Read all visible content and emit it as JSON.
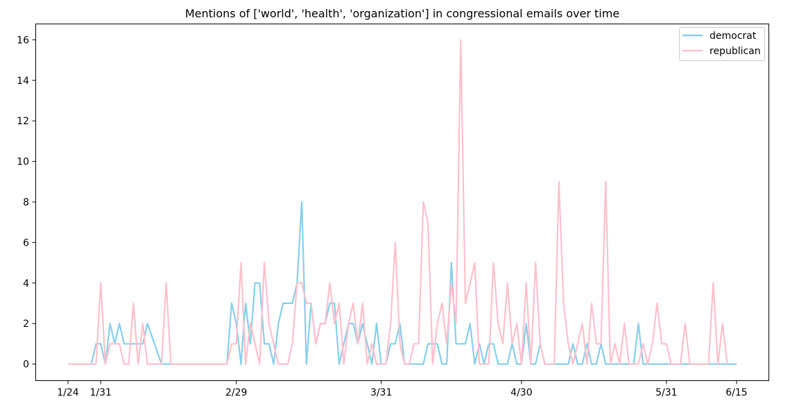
{
  "chart_data": {
    "type": "line",
    "title": "Mentions of ['world', 'health', 'organization'] in congressional emails over time",
    "xlabel": "",
    "ylabel": "",
    "x_start": "2024-01-24",
    "x_end": "2024-06-15",
    "xtick_labels": [
      {
        "date": "2024-01-24",
        "label": "1/24"
      },
      {
        "date": "2024-01-31",
        "label": "1/31"
      },
      {
        "date": "2024-02-29",
        "label": "2/29"
      },
      {
        "date": "2024-03-31",
        "label": "3/31"
      },
      {
        "date": "2024-04-30",
        "label": "4/30"
      },
      {
        "date": "2024-05-31",
        "label": "5/31"
      },
      {
        "date": "2024-06-15",
        "label": "6/15"
      }
    ],
    "ylim": [
      -0.8,
      16.8
    ],
    "yticks": [
      0,
      2,
      4,
      6,
      8,
      10,
      12,
      14,
      16
    ],
    "legend_position": "top-right",
    "grid": false,
    "series": [
      {
        "name": "democrat",
        "color": "#87ceeb",
        "points": [
          [
            "2024-01-24",
            0
          ],
          [
            "2024-01-29",
            0
          ],
          [
            "2024-01-30",
            1
          ],
          [
            "2024-01-31",
            1
          ],
          [
            "2024-02-01",
            0
          ],
          [
            "2024-02-02",
            2
          ],
          [
            "2024-02-03",
            1
          ],
          [
            "2024-02-04",
            2
          ],
          [
            "2024-02-05",
            1
          ],
          [
            "2024-02-09",
            1
          ],
          [
            "2024-02-10",
            2
          ],
          [
            "2024-02-13",
            0
          ],
          [
            "2024-02-27",
            0
          ],
          [
            "2024-02-28",
            3
          ],
          [
            "2024-02-29",
            2
          ],
          [
            "2024-03-01",
            0
          ],
          [
            "2024-03-02",
            3
          ],
          [
            "2024-03-03",
            1
          ],
          [
            "2024-03-04",
            4
          ],
          [
            "2024-03-05",
            4
          ],
          [
            "2024-03-06",
            1
          ],
          [
            "2024-03-07",
            1
          ],
          [
            "2024-03-08",
            0
          ],
          [
            "2024-03-09",
            2
          ],
          [
            "2024-03-10",
            3
          ],
          [
            "2024-03-12",
            3
          ],
          [
            "2024-03-13",
            4
          ],
          [
            "2024-03-14",
            8
          ],
          [
            "2024-03-15",
            0
          ],
          [
            "2024-03-16",
            3
          ],
          [
            "2024-03-17",
            1
          ],
          [
            "2024-03-18",
            2
          ],
          [
            "2024-03-19",
            2
          ],
          [
            "2024-03-20",
            3
          ],
          [
            "2024-03-21",
            3
          ],
          [
            "2024-03-22",
            0
          ],
          [
            "2024-03-23",
            1
          ],
          [
            "2024-03-24",
            2
          ],
          [
            "2024-03-25",
            2
          ],
          [
            "2024-03-26",
            1
          ],
          [
            "2024-03-27",
            2
          ],
          [
            "2024-03-28",
            1
          ],
          [
            "2024-03-29",
            0
          ],
          [
            "2024-03-30",
            2
          ],
          [
            "2024-03-31",
            0
          ],
          [
            "2024-04-01",
            0
          ],
          [
            "2024-04-02",
            1
          ],
          [
            "2024-04-03",
            1
          ],
          [
            "2024-04-04",
            2
          ],
          [
            "2024-04-05",
            0
          ],
          [
            "2024-04-09",
            0
          ],
          [
            "2024-04-10",
            1
          ],
          [
            "2024-04-11",
            1
          ],
          [
            "2024-04-12",
            1
          ],
          [
            "2024-04-13",
            0
          ],
          [
            "2024-04-14",
            0
          ],
          [
            "2024-04-15",
            5
          ],
          [
            "2024-04-16",
            1
          ],
          [
            "2024-04-18",
            1
          ],
          [
            "2024-04-19",
            2
          ],
          [
            "2024-04-20",
            0
          ],
          [
            "2024-04-21",
            1
          ],
          [
            "2024-04-22",
            0
          ],
          [
            "2024-04-23",
            1
          ],
          [
            "2024-04-24",
            1
          ],
          [
            "2024-04-25",
            0
          ],
          [
            "2024-04-27",
            0
          ],
          [
            "2024-04-28",
            1
          ],
          [
            "2024-04-29",
            0
          ],
          [
            "2024-04-30",
            0
          ],
          [
            "2024-05-01",
            2
          ],
          [
            "2024-05-02",
            0
          ],
          [
            "2024-05-03",
            0
          ],
          [
            "2024-05-04",
            1
          ],
          [
            "2024-05-05",
            0
          ],
          [
            "2024-05-10",
            0
          ],
          [
            "2024-05-11",
            1
          ],
          [
            "2024-05-12",
            0
          ],
          [
            "2024-05-13",
            0
          ],
          [
            "2024-05-14",
            1
          ],
          [
            "2024-05-15",
            0
          ],
          [
            "2024-05-16",
            0
          ],
          [
            "2024-05-17",
            1
          ],
          [
            "2024-05-18",
            0
          ],
          [
            "2024-05-24",
            0
          ],
          [
            "2024-05-25",
            2
          ],
          [
            "2024-05-26",
            0
          ],
          [
            "2024-06-15",
            0
          ]
        ]
      },
      {
        "name": "republican",
        "color": "#ffc0cb",
        "points": [
          [
            "2024-01-24",
            0
          ],
          [
            "2024-01-30",
            0
          ],
          [
            "2024-01-31",
            4
          ],
          [
            "2024-02-01",
            0
          ],
          [
            "2024-02-02",
            1
          ],
          [
            "2024-02-04",
            1
          ],
          [
            "2024-02-05",
            0
          ],
          [
            "2024-02-06",
            0
          ],
          [
            "2024-02-07",
            3
          ],
          [
            "2024-02-08",
            0
          ],
          [
            "2024-02-09",
            2
          ],
          [
            "2024-02-10",
            0
          ],
          [
            "2024-02-13",
            0
          ],
          [
            "2024-02-14",
            4
          ],
          [
            "2024-02-15",
            0
          ],
          [
            "2024-02-27",
            0
          ],
          [
            "2024-02-28",
            1
          ],
          [
            "2024-02-29",
            1
          ],
          [
            "2024-03-01",
            5
          ],
          [
            "2024-03-02",
            0
          ],
          [
            "2024-03-03",
            2
          ],
          [
            "2024-03-04",
            1
          ],
          [
            "2024-03-05",
            0
          ],
          [
            "2024-03-06",
            5
          ],
          [
            "2024-03-07",
            2
          ],
          [
            "2024-03-08",
            1
          ],
          [
            "2024-03-09",
            0
          ],
          [
            "2024-03-11",
            0
          ],
          [
            "2024-03-12",
            1
          ],
          [
            "2024-03-13",
            4
          ],
          [
            "2024-03-14",
            4
          ],
          [
            "2024-03-15",
            3
          ],
          [
            "2024-03-16",
            3
          ],
          [
            "2024-03-17",
            1
          ],
          [
            "2024-03-18",
            2
          ],
          [
            "2024-03-19",
            2
          ],
          [
            "2024-03-20",
            4
          ],
          [
            "2024-03-21",
            2
          ],
          [
            "2024-03-22",
            3
          ],
          [
            "2024-03-23",
            0
          ],
          [
            "2024-03-24",
            2
          ],
          [
            "2024-03-25",
            3
          ],
          [
            "2024-03-26",
            1
          ],
          [
            "2024-03-27",
            3
          ],
          [
            "2024-03-28",
            0
          ],
          [
            "2024-03-29",
            1
          ],
          [
            "2024-03-30",
            0
          ],
          [
            "2024-04-01",
            0
          ],
          [
            "2024-04-02",
            2
          ],
          [
            "2024-04-03",
            6
          ],
          [
            "2024-04-04",
            1
          ],
          [
            "2024-04-05",
            0
          ],
          [
            "2024-04-06",
            0
          ],
          [
            "2024-04-07",
            1
          ],
          [
            "2024-04-08",
            1
          ],
          [
            "2024-04-09",
            8
          ],
          [
            "2024-04-10",
            7
          ],
          [
            "2024-04-11",
            0
          ],
          [
            "2024-04-12",
            2
          ],
          [
            "2024-04-13",
            3
          ],
          [
            "2024-04-14",
            1
          ],
          [
            "2024-04-15",
            4
          ],
          [
            "2024-04-16",
            2
          ],
          [
            "2024-04-17",
            16
          ],
          [
            "2024-04-18",
            3
          ],
          [
            "2024-04-19",
            4
          ],
          [
            "2024-04-20",
            5
          ],
          [
            "2024-04-21",
            0
          ],
          [
            "2024-04-22",
            0
          ],
          [
            "2024-04-23",
            0
          ],
          [
            "2024-04-24",
            5
          ],
          [
            "2024-04-25",
            2
          ],
          [
            "2024-04-26",
            1
          ],
          [
            "2024-04-27",
            4
          ],
          [
            "2024-04-28",
            1
          ],
          [
            "2024-04-29",
            2
          ],
          [
            "2024-04-30",
            0
          ],
          [
            "2024-05-01",
            4
          ],
          [
            "2024-05-02",
            0
          ],
          [
            "2024-05-03",
            5
          ],
          [
            "2024-05-04",
            1
          ],
          [
            "2024-05-05",
            0
          ],
          [
            "2024-05-07",
            0
          ],
          [
            "2024-05-08",
            9
          ],
          [
            "2024-05-09",
            3
          ],
          [
            "2024-05-10",
            1
          ],
          [
            "2024-05-11",
            0
          ],
          [
            "2024-05-12",
            1
          ],
          [
            "2024-05-13",
            2
          ],
          [
            "2024-05-14",
            0
          ],
          [
            "2024-05-15",
            3
          ],
          [
            "2024-05-16",
            1
          ],
          [
            "2024-05-17",
            1
          ],
          [
            "2024-05-18",
            9
          ],
          [
            "2024-05-19",
            0
          ],
          [
            "2024-05-20",
            1
          ],
          [
            "2024-05-21",
            0
          ],
          [
            "2024-05-22",
            2
          ],
          [
            "2024-05-23",
            0
          ],
          [
            "2024-05-25",
            0
          ],
          [
            "2024-05-26",
            1
          ],
          [
            "2024-05-27",
            0
          ],
          [
            "2024-05-28",
            1
          ],
          [
            "2024-05-29",
            3
          ],
          [
            "2024-05-30",
            1
          ],
          [
            "2024-05-31",
            1
          ],
          [
            "2024-06-01",
            0
          ],
          [
            "2024-06-03",
            0
          ],
          [
            "2024-06-04",
            2
          ],
          [
            "2024-06-05",
            0
          ],
          [
            "2024-06-09",
            0
          ],
          [
            "2024-06-10",
            4
          ],
          [
            "2024-06-11",
            0
          ],
          [
            "2024-06-12",
            2
          ],
          [
            "2024-06-13",
            0
          ]
        ]
      }
    ]
  }
}
